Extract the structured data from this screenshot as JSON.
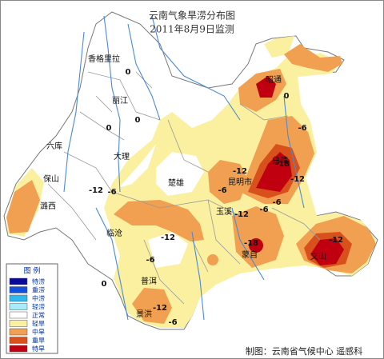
{
  "title": [
    "云南气象旱涝分布图",
    "2011年8月9日监测"
  ],
  "cities": [
    "香格里拉",
    "丽江",
    "大理",
    "六库",
    "保山",
    "潞西",
    "临沧",
    "楚雄",
    "昆明市",
    "曲靖",
    "昭通",
    "玉溪",
    "蒙自",
    "文山",
    "普洱",
    "景洪"
  ],
  "contour_labels": [
    "0",
    "0",
    "0",
    "-6",
    "-12",
    "-12",
    "-18",
    "-12",
    "-6",
    "-12",
    "-18",
    "-6",
    "-12",
    "0",
    "-6",
    "-12",
    "-6",
    "-12",
    "-6",
    "0",
    "-6"
  ],
  "legend": {
    "title": "图 例",
    "items": [
      {
        "label": "特涝",
        "color": "#0a0a9a"
      },
      {
        "label": "重涝",
        "color": "#1050e0"
      },
      {
        "label": "中涝",
        "color": "#30b8f0"
      },
      {
        "label": "轻涝",
        "color": "#a8ecfc"
      },
      {
        "label": "正常",
        "color": "#ffffff"
      },
      {
        "label": "轻旱",
        "color": "#faf0a0"
      },
      {
        "label": "中旱",
        "color": "#f0a050"
      },
      {
        "label": "重旱",
        "color": "#d8501c"
      },
      {
        "label": "特旱",
        "color": "#c00010"
      }
    ]
  },
  "credit": "制图：云南省气候中心 遥感科"
}
